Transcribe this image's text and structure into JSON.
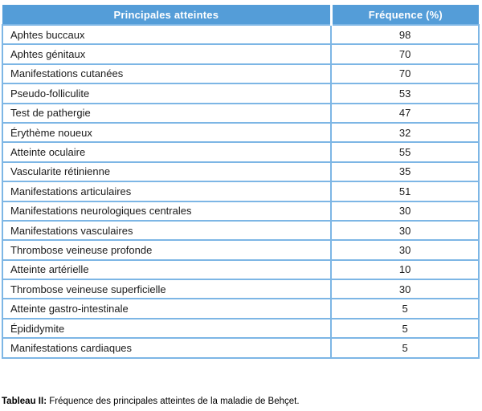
{
  "table": {
    "headers": {
      "atteinte": "Principales atteintes",
      "frequence": "Fréquence (%)"
    },
    "rows": [
      {
        "atteinte": "Aphtes buccaux",
        "frequence": "98"
      },
      {
        "atteinte": "Aphtes génitaux",
        "frequence": "70"
      },
      {
        "atteinte": "Manifestations cutanées",
        "frequence": "70"
      },
      {
        "atteinte": "Pseudo-folliculite",
        "frequence": "53"
      },
      {
        "atteinte": "Test de pathergie",
        "frequence": "47"
      },
      {
        "atteinte": "Érythème noueux",
        "frequence": "32"
      },
      {
        "atteinte": "Atteinte oculaire",
        "frequence": "55"
      },
      {
        "atteinte": "Vascularite rétinienne",
        "frequence": "35"
      },
      {
        "atteinte": "Manifestations articulaires",
        "frequence": "51"
      },
      {
        "atteinte": "Manifestations neurologiques centrales",
        "frequence": "30"
      },
      {
        "atteinte": "Manifestations vasculaires",
        "frequence": "30"
      },
      {
        "atteinte": "Thrombose veineuse profonde",
        "frequence": "30"
      },
      {
        "atteinte": "Atteinte artérielle",
        "frequence": "10"
      },
      {
        "atteinte": "Thrombose veineuse superficielle",
        "frequence": "30"
      },
      {
        "atteinte": "Atteinte gastro-intestinale",
        "frequence": "5"
      },
      {
        "atteinte": "Épididymite",
        "frequence": "5"
      },
      {
        "atteinte": "Manifestations cardiaques",
        "frequence": "5"
      }
    ]
  },
  "caption": {
    "label": "Tableau II:",
    "text": " Fréquence des principales atteintes de la maladie de Behçet."
  },
  "colors": {
    "header_bg": "#549dd8",
    "header_text": "#ffffff",
    "row_border": "#7db6e5",
    "row_text": "#1b1b1b",
    "caption_text": "#000000"
  }
}
